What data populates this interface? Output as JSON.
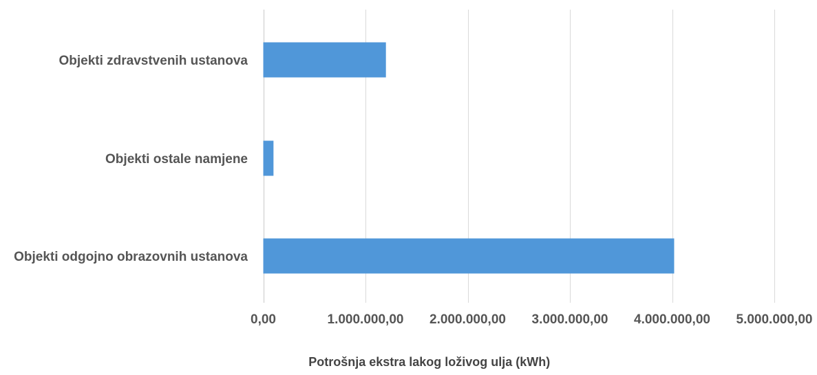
{
  "chart_data": {
    "type": "bar",
    "orientation": "horizontal",
    "categories": [
      "Objekti zdravstvenih ustanova",
      "Objekti ostale namjene",
      "Objekti odgojno obrazovnih ustanova"
    ],
    "values": [
      1200000,
      100000,
      4020000
    ],
    "xlim": [
      0,
      5000000
    ],
    "x_ticks": [
      0,
      1000000,
      2000000,
      3000000,
      4000000,
      5000000
    ],
    "x_tick_labels": [
      "0,00",
      "1.000.000,00",
      "2.000.000,00",
      "3.000.000,00",
      "4.000.000,00",
      "5.000.000,00"
    ],
    "title": "",
    "xlabel": "Potrošnja ekstra lakog loživog ulja (kWh)",
    "ylabel": "",
    "grid": "vertical",
    "legend": "none",
    "bar_color": "#5097d9"
  }
}
